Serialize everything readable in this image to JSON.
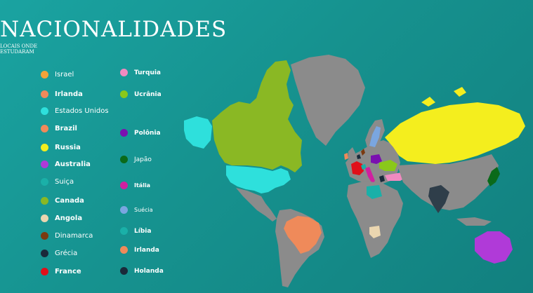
{
  "title": "NACIONALIDADES",
  "subtitle_line1": "LOCAIS ONDE",
  "subtitle_line2": "ESTUDARAM",
  "legend_left": [
    {
      "label": "Israel",
      "color": "#f2a33a"
    },
    {
      "label": "Irlanda",
      "color": "#ef8a5a"
    },
    {
      "label": "Estados Unidos",
      "color": "#2ee0dc"
    },
    {
      "label": "Brazil",
      "color": "#ef8a5a"
    },
    {
      "label": "Russia",
      "color": "#f4ee1e"
    },
    {
      "label": "Australia",
      "color": "#b03ad8"
    },
    {
      "label": "Suiça",
      "color": "#1ab0a8"
    },
    {
      "label": "Canada",
      "color": "#8ab824"
    },
    {
      "label": "Angola",
      "color": "#ead6b0"
    },
    {
      "label": "Dinamarca",
      "color": "#7a3a10"
    },
    {
      "label": "Grécia",
      "color": "#1a2a3a"
    },
    {
      "label": "France",
      "color": "#e0101a"
    }
  ],
  "legend_right": [
    {
      "label": "Turquia",
      "color": "#f08ac0"
    },
    {
      "label": "Ucrânia",
      "color": "#8ac81a"
    },
    {
      "label": "Polônia",
      "color": "#7a10b0"
    },
    {
      "label": "Japão",
      "color": "#0a6a1a"
    },
    {
      "label": "Itália",
      "color": "#d020a0"
    },
    {
      "label": "Suécia",
      "color": "#7aa6e0"
    },
    {
      "label": "Líbia",
      "color": "#1ab0a8"
    },
    {
      "label": "Irlanda",
      "color": "#ef8a5a"
    },
    {
      "label": "Holanda",
      "color": "#1a2a3a"
    }
  ]
}
